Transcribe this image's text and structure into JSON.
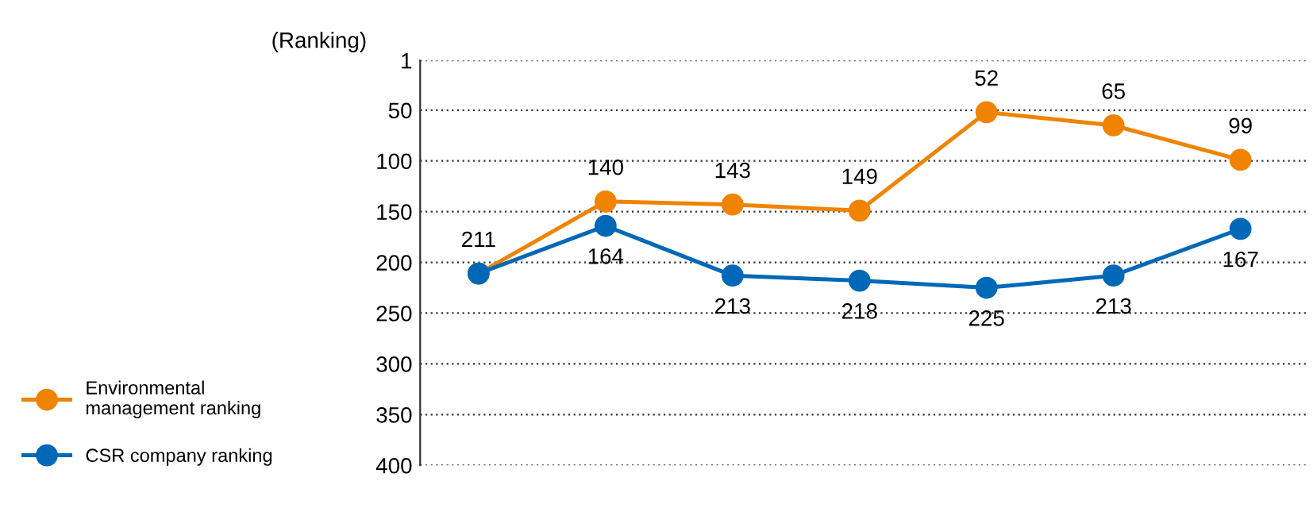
{
  "chart_data": {
    "type": "line",
    "ylabel": "(Ranking)",
    "categories": [
      null,
      null,
      null,
      null,
      null,
      null,
      null
    ],
    "series": [
      {
        "name": "Environmental\nmanagement ranking",
        "color": "#f08300",
        "values": [
          211,
          140,
          143,
          149,
          52,
          65,
          99
        ],
        "value_labels": [
          "211",
          "140",
          "143",
          "149",
          "52",
          "65",
          "99"
        ]
      },
      {
        "name": "CSR company ranking",
        "color": "#0068b7",
        "values": [
          211,
          164,
          213,
          218,
          225,
          213,
          167
        ],
        "value_labels": [
          null,
          "164",
          "213",
          "218",
          "225",
          "213",
          "167"
        ]
      }
    ],
    "ylim": [
      400,
      1
    ],
    "yticks": [
      1,
      50,
      100,
      150,
      200,
      250,
      300,
      350,
      400
    ],
    "grid": "y",
    "legend": "left",
    "marker": "circle",
    "line_style": "solid",
    "tick_labels": "y"
  }
}
